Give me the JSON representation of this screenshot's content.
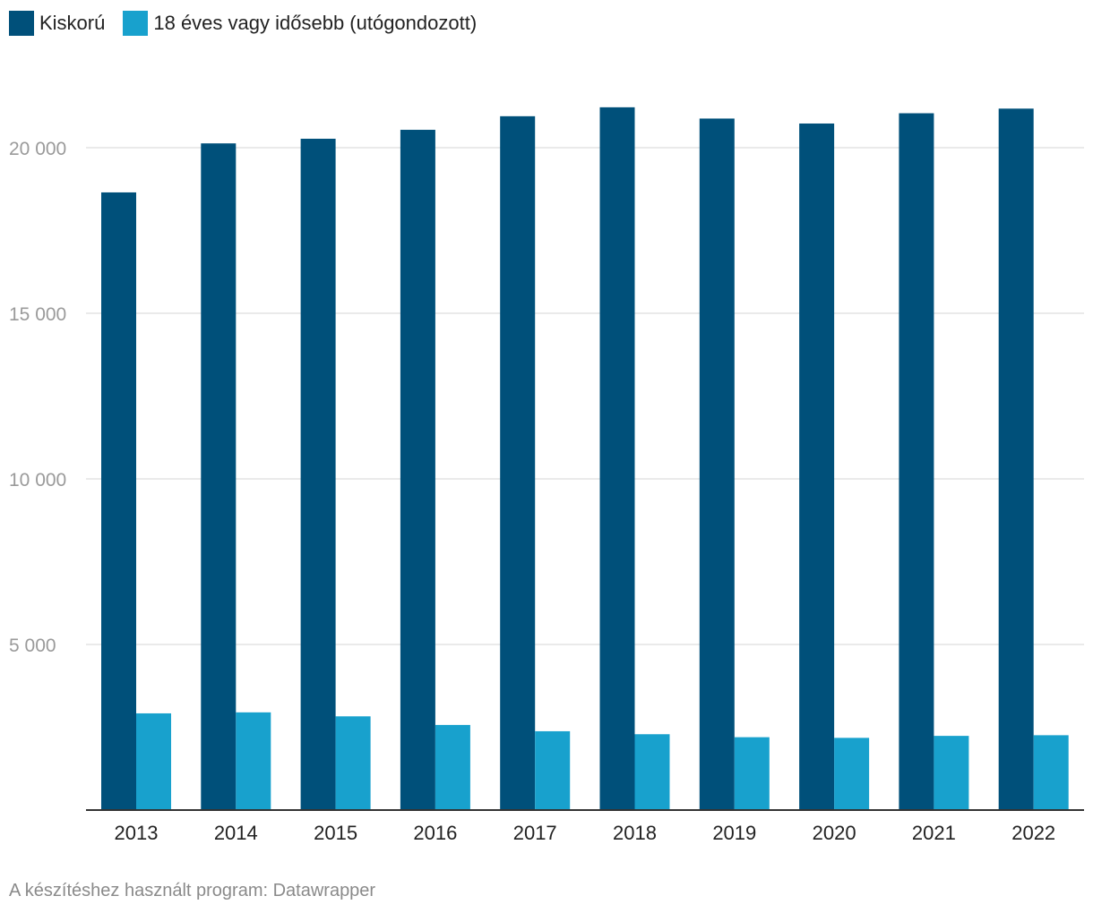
{
  "legend": [
    {
      "label": "Kiskorú",
      "color": "#00507a"
    },
    {
      "label": "18 éves vagy idősebb (utógondozott)",
      "color": "#18a1cd"
    }
  ],
  "footer": "A készítéshez használt program: Datawrapper",
  "chart_data": {
    "type": "bar",
    "categories": [
      "2013",
      "2014",
      "2015",
      "2016",
      "2017",
      "2018",
      "2019",
      "2020",
      "2021",
      "2022"
    ],
    "series": [
      {
        "name": "Kiskorú",
        "color": "#00507a",
        "values": [
          18650,
          20130,
          20270,
          20540,
          20950,
          21220,
          20880,
          20730,
          21040,
          21180
        ]
      },
      {
        "name": "18 éves vagy idősebb (utógondozott)",
        "color": "#18a1cd",
        "values": [
          2920,
          2950,
          2830,
          2570,
          2380,
          2290,
          2200,
          2180,
          2240,
          2260
        ]
      }
    ],
    "ylim": [
      0,
      22000
    ],
    "yticks": [
      5000,
      10000,
      15000,
      20000
    ],
    "ytick_labels": [
      "5 000",
      "10 000",
      "15 000",
      "20 000"
    ],
    "grid": true,
    "legend_position": "top-left"
  }
}
